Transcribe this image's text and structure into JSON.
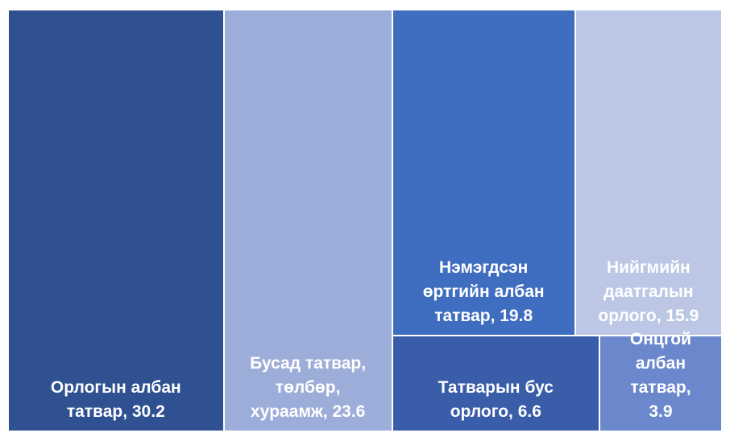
{
  "chart_data": {
    "type": "treemap",
    "categories": [
      "Орлогын албан татвар, 30.2",
      "Бусад татвар, төлбөр, хураамж, 23.6",
      "Нэмэгдсэн өртгийн албан татвар, 19.8",
      "Нийгмийн даатгалын орлого, 15.9",
      "Татварын бус орлого, 6.6",
      "Онцгой албан татвар, 3.9"
    ],
    "values": [
      30.2,
      23.6,
      19.8,
      15.9,
      6.6,
      3.9
    ],
    "colors": [
      "#2f5192",
      "#9dadd9",
      "#3f6dbf",
      "#bcc7e5",
      "#3a5da9",
      "#6b88cc"
    ]
  }
}
